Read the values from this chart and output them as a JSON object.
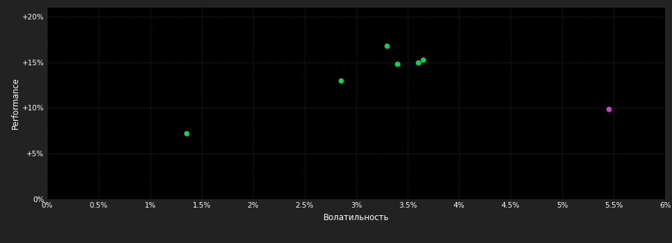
{
  "background_color": "#222222",
  "plot_bg_color": "#000000",
  "grid_color": "#3a3a3a",
  "text_color": "#ffffff",
  "xlabel": "Волатильность",
  "ylabel": "Performance",
  "xlim": [
    0,
    0.06
  ],
  "ylim": [
    0,
    0.21
  ],
  "xticks": [
    0.0,
    0.005,
    0.01,
    0.015,
    0.02,
    0.025,
    0.03,
    0.035,
    0.04,
    0.045,
    0.05,
    0.055,
    0.06
  ],
  "yticks": [
    0.0,
    0.05,
    0.1,
    0.15,
    0.2
  ],
  "ytick_labels": [
    "0%",
    "+5%",
    "+10%",
    "+15%",
    "+20%"
  ],
  "xtick_labels": [
    "0%",
    "0.5%",
    "1%",
    "1.5%",
    "2%",
    "2.5%",
    "3%",
    "3.5%",
    "4%",
    "4.5%",
    "5%",
    "5.5%",
    "6%"
  ],
  "green_points": [
    [
      0.0135,
      0.072
    ],
    [
      0.0285,
      0.13
    ],
    [
      0.033,
      0.168
    ],
    [
      0.034,
      0.148
    ],
    [
      0.036,
      0.15
    ],
    [
      0.0365,
      0.153
    ]
  ],
  "magenta_points": [
    [
      0.0545,
      0.099
    ]
  ],
  "point_size": 30,
  "green_color": "#00dd44",
  "magenta_color": "#cc44cc",
  "figsize": [
    9.66,
    3.5
  ],
  "dpi": 100
}
